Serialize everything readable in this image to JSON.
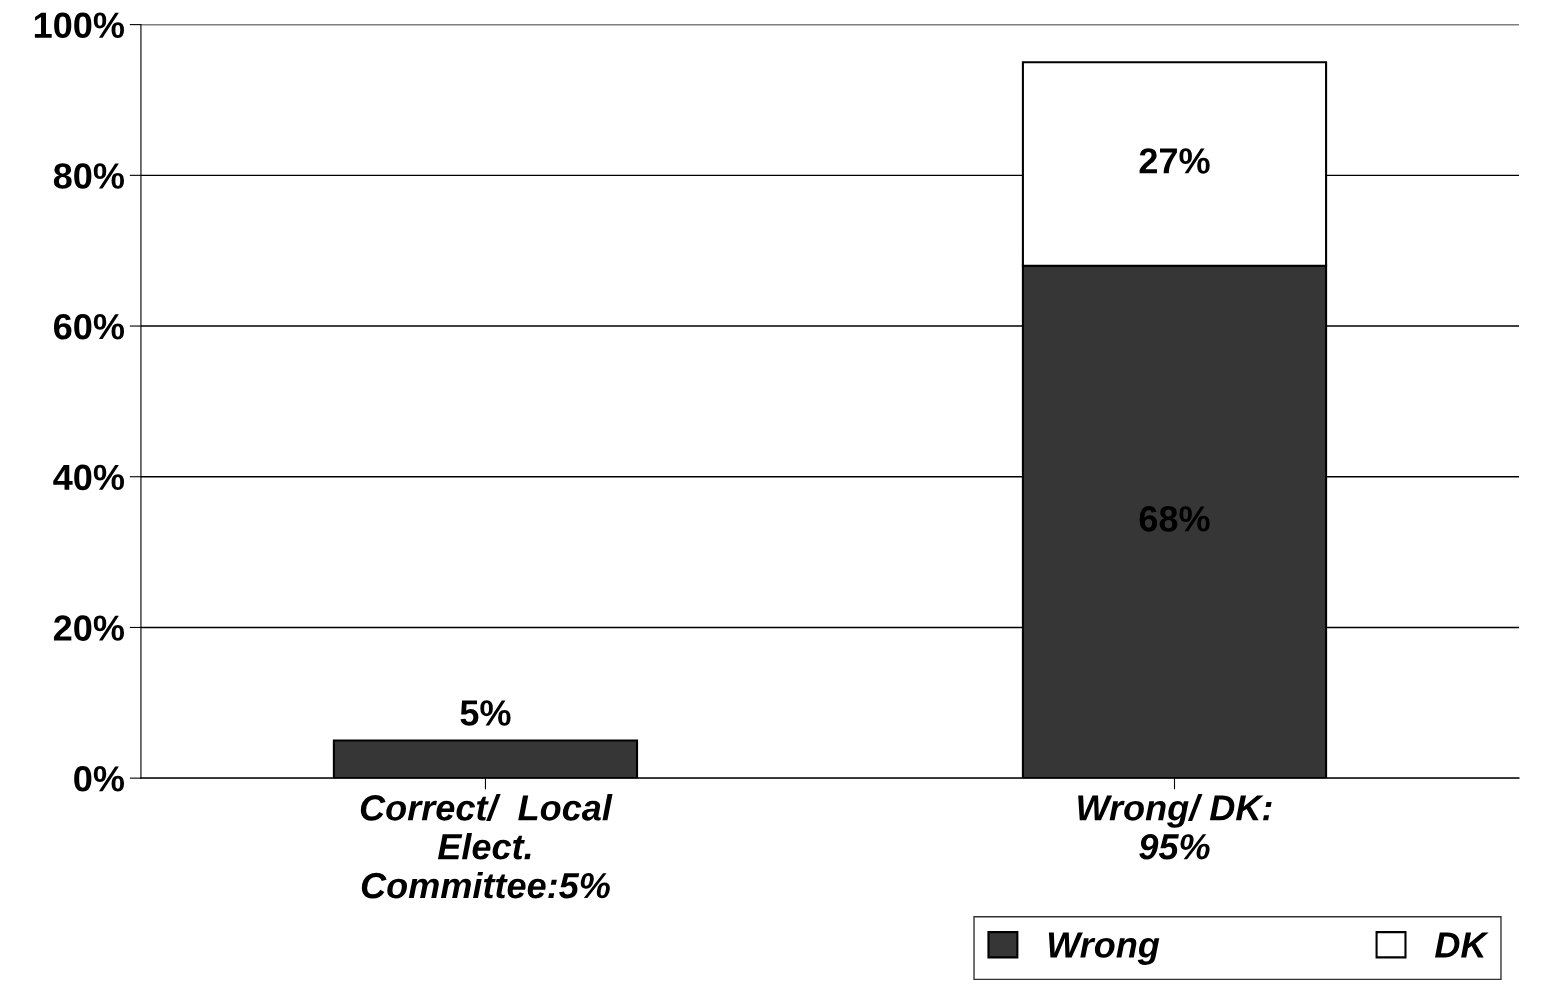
{
  "chart_data": {
    "type": "bar",
    "stacked": true,
    "categories": [
      "Correct/  Local\nElect.\nCommittee:5%",
      "Wrong/ DK:\n95%"
    ],
    "series": [
      {
        "color": "#363636",
        "values": [
          5,
          null
        ],
        "value_labels": [
          "5%",
          null
        ]
      },
      {
        "name": "Wrong",
        "color": "#363636",
        "values": [
          null,
          68
        ],
        "value_labels": [
          null,
          "68%"
        ]
      },
      {
        "name": "DK",
        "color": "#ffffff",
        "values": [
          null,
          27
        ],
        "value_labels": [
          null,
          "27%"
        ]
      }
    ],
    "ylim": [
      0,
      100
    ],
    "yticks": [
      {
        "value": 0,
        "label": "0%"
      },
      {
        "value": 20,
        "label": "20%"
      },
      {
        "value": 40,
        "label": "40%"
      },
      {
        "value": 60,
        "label": "60%"
      },
      {
        "value": 80,
        "label": "80%"
      },
      {
        "value": 100,
        "label": "100%"
      }
    ],
    "grid": "y",
    "legend": "bottom right"
  }
}
